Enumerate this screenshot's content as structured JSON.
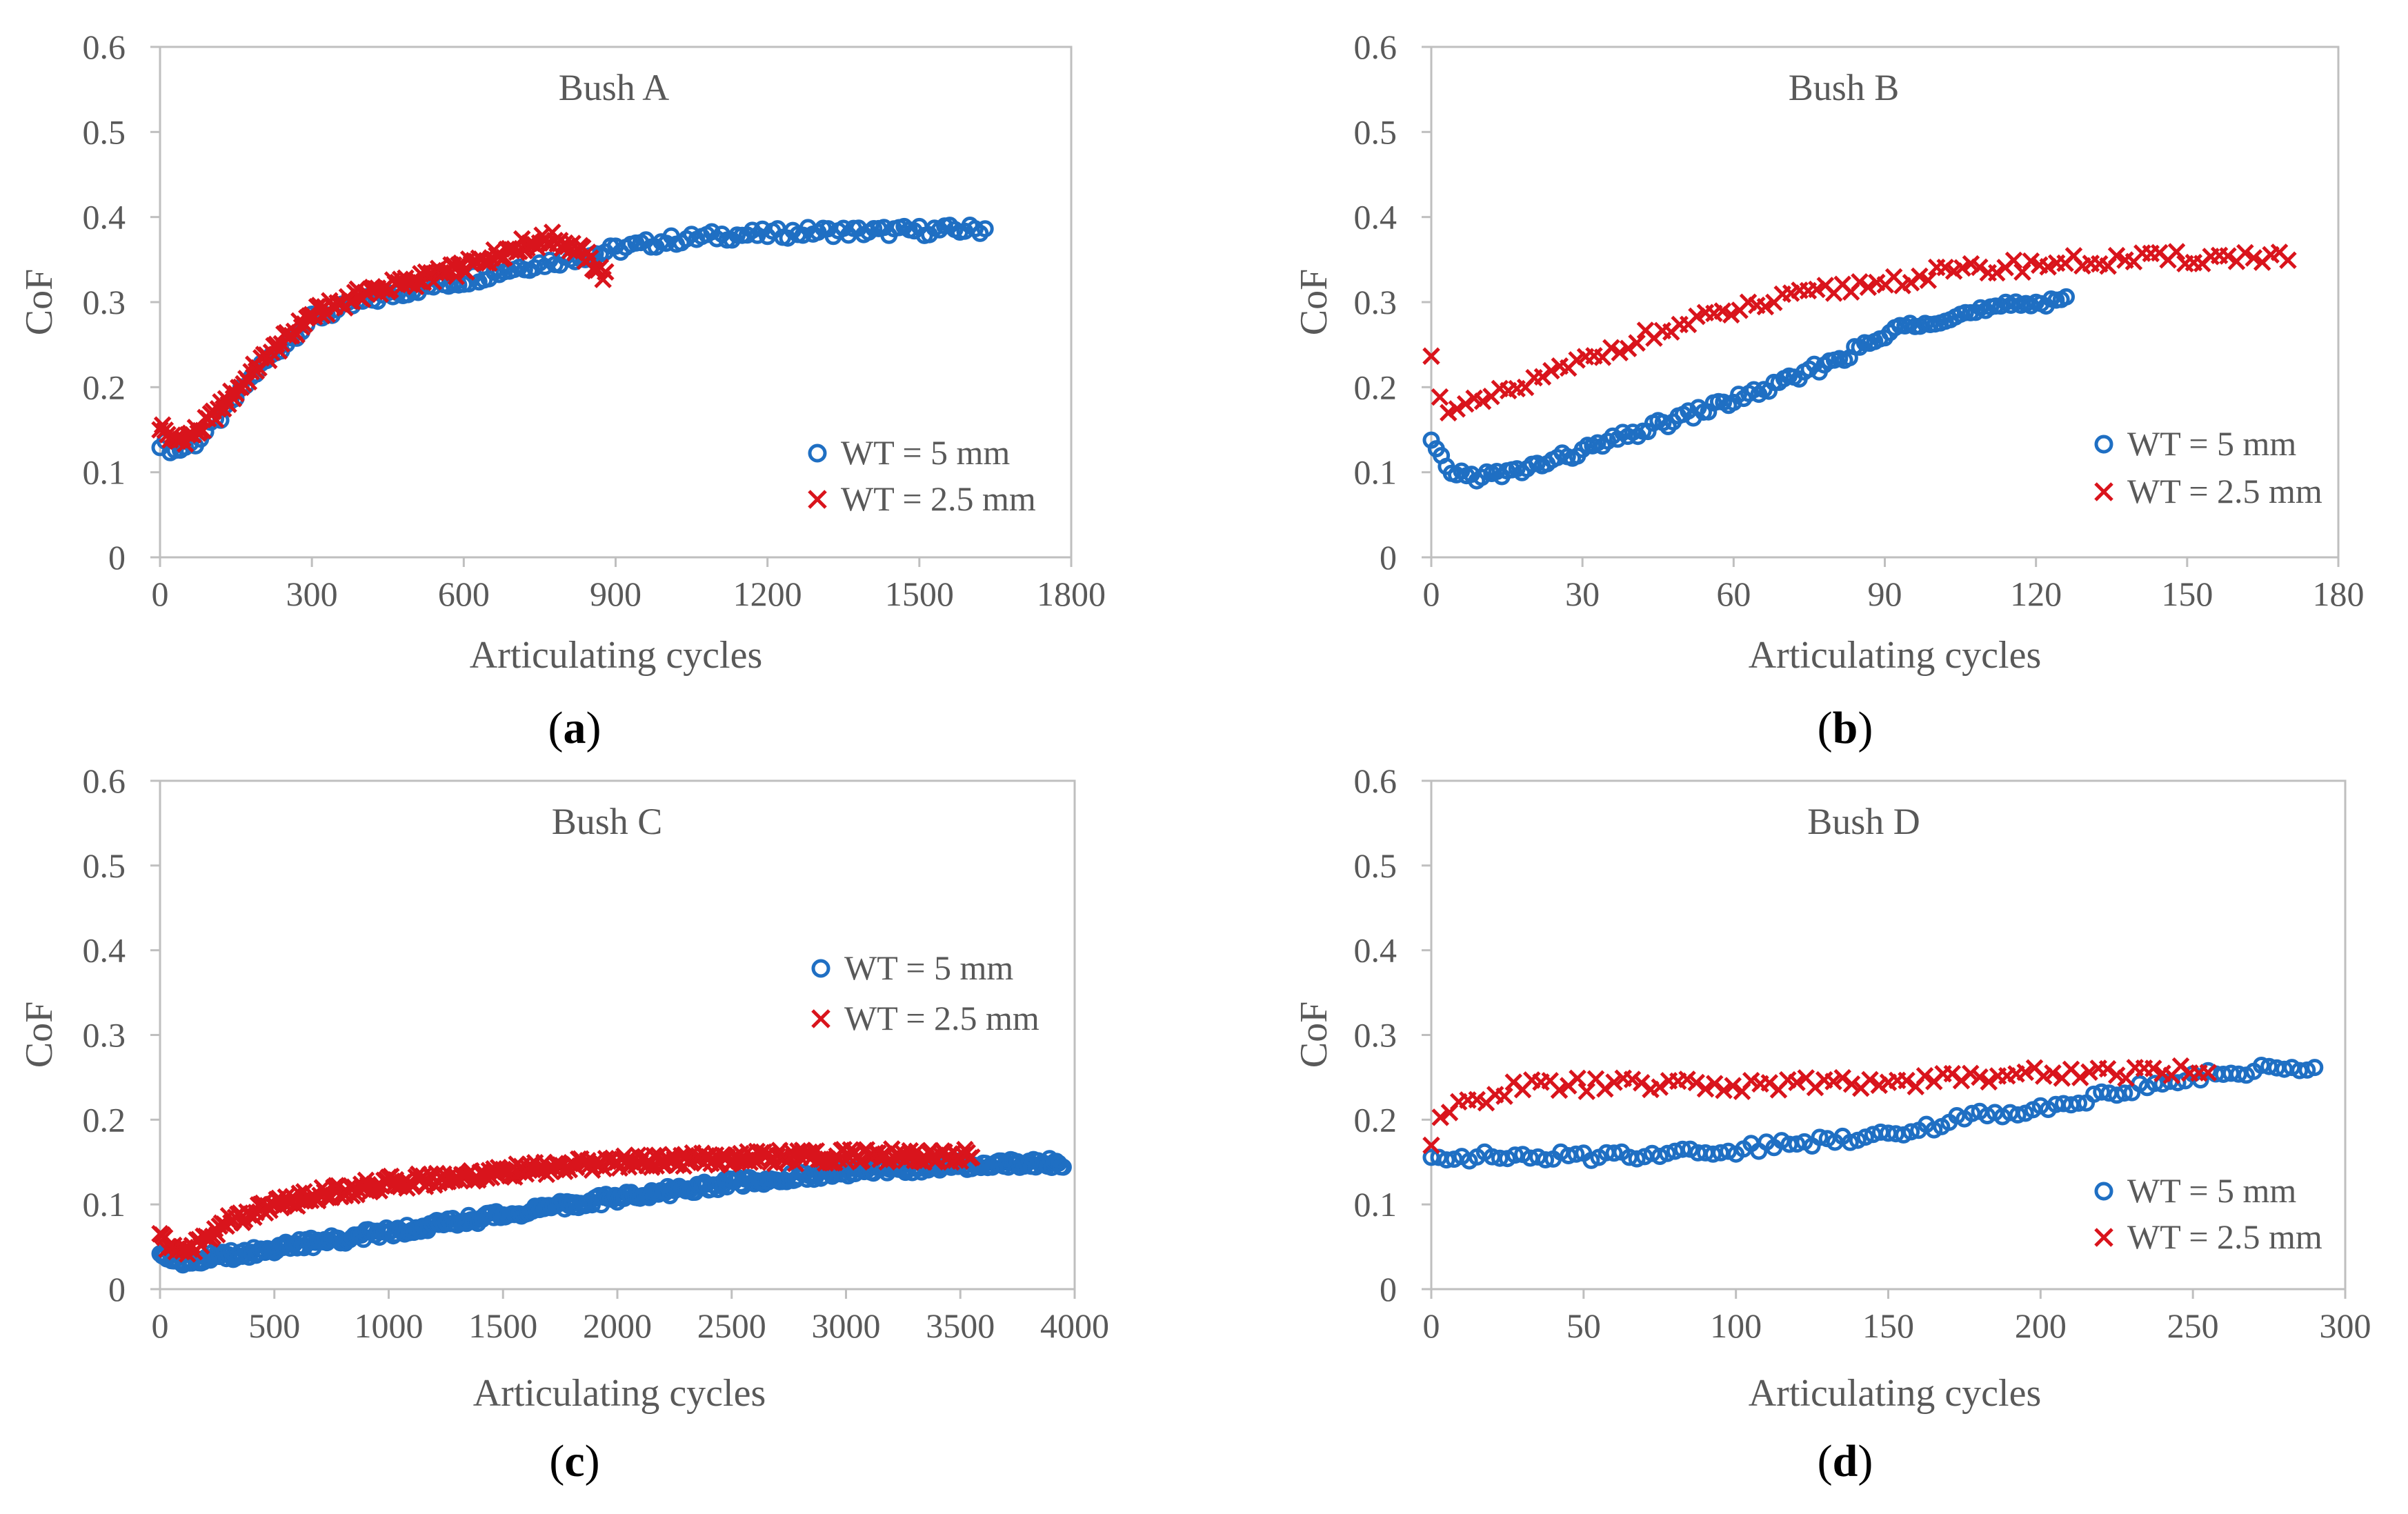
{
  "colors": {
    "series_blue": "#1f6fc3",
    "series_red": "#d9141c",
    "axis": "#bfbfbf",
    "text": "#595959"
  },
  "chart_data": [
    {
      "type": "scatter",
      "title": "Bush A",
      "caption_letter": "a",
      "caption_open": "(",
      "caption_close": ")",
      "xlabel": "Articulating cycles",
      "ylabel": "CoF",
      "xlim": [
        0,
        1800
      ],
      "ylim": [
        0,
        0.6
      ],
      "xticks": [
        0,
        300,
        600,
        900,
        1200,
        1500,
        1800
      ],
      "yticks": [
        0,
        0.1,
        0.2,
        0.3,
        0.4,
        0.5,
        0.6
      ],
      "xtick_labels": [
        "0",
        "300",
        "600",
        "900",
        "1200",
        "1500",
        "1800"
      ],
      "ytick_labels": [
        "0",
        "0.1",
        "0.2",
        "0.3",
        "0.4",
        "0.5",
        "0.6"
      ],
      "legend_position": "bottom-right",
      "series": [
        {
          "name": "WT = 5 mm",
          "marker": "circle",
          "color": "#1f6fc3",
          "x_max": 1630,
          "step": 10,
          "points": [
            [
              0,
              0.135
            ],
            [
              30,
              0.125
            ],
            [
              70,
              0.135
            ],
            [
              120,
              0.165
            ],
            [
              200,
              0.225
            ],
            [
              300,
              0.28
            ],
            [
              400,
              0.3
            ],
            [
              500,
              0.315
            ],
            [
              600,
              0.325
            ],
            [
              700,
              0.34
            ],
            [
              800,
              0.35
            ],
            [
              900,
              0.362
            ],
            [
              1000,
              0.372
            ],
            [
              1100,
              0.378
            ],
            [
              1200,
              0.38
            ],
            [
              1300,
              0.383
            ],
            [
              1400,
              0.383
            ],
            [
              1500,
              0.384
            ],
            [
              1630,
              0.386
            ]
          ]
        },
        {
          "name": "WT = 2.5 mm",
          "marker": "x",
          "color": "#d9141c",
          "x_max": 880,
          "step": 5,
          "points": [
            [
              0,
              0.155
            ],
            [
              30,
              0.135
            ],
            [
              80,
              0.15
            ],
            [
              150,
              0.195
            ],
            [
              200,
              0.23
            ],
            [
              300,
              0.285
            ],
            [
              400,
              0.31
            ],
            [
              500,
              0.325
            ],
            [
              600,
              0.34
            ],
            [
              700,
              0.365
            ],
            [
              780,
              0.375
            ],
            [
              830,
              0.36
            ],
            [
              880,
              0.33
            ]
          ]
        }
      ]
    },
    {
      "type": "scatter",
      "title": "Bush B",
      "caption_letter": "b",
      "caption_open": "(",
      "caption_close": ")",
      "xlabel": "Articulating cycles",
      "ylabel": "CoF",
      "xlim": [
        0,
        180
      ],
      "ylim": [
        0,
        0.6
      ],
      "xticks": [
        0,
        30,
        60,
        90,
        120,
        150,
        180
      ],
      "yticks": [
        0,
        0.1,
        0.2,
        0.3,
        0.4,
        0.5,
        0.6
      ],
      "xtick_labels": [
        "0",
        "30",
        "60",
        "90",
        "120",
        "150",
        "180"
      ],
      "ytick_labels": [
        "0",
        "0.1",
        "0.2",
        "0.3",
        "0.4",
        "0.5",
        "0.6"
      ],
      "legend_position": "bottom-right",
      "series": [
        {
          "name": "WT = 5 mm",
          "marker": "circle",
          "color": "#1f6fc3",
          "x_max": 126,
          "step": 1,
          "points": [
            [
              0,
              0.135
            ],
            [
              3,
              0.103
            ],
            [
              8,
              0.095
            ],
            [
              15,
              0.098
            ],
            [
              25,
              0.115
            ],
            [
              40,
              0.145
            ],
            [
              55,
              0.175
            ],
            [
              70,
              0.205
            ],
            [
              85,
              0.245
            ],
            [
              95,
              0.275
            ],
            [
              105,
              0.285
            ],
            [
              115,
              0.295
            ],
            [
              126,
              0.305
            ]
          ]
        },
        {
          "name": "WT = 2.5 mm",
          "marker": "x",
          "color": "#d9141c",
          "x_max": 171,
          "step": 1.7,
          "points": [
            [
              0,
              0.232
            ],
            [
              2,
              0.19
            ],
            [
              4,
              0.168
            ],
            [
              8,
              0.178
            ],
            [
              20,
              0.205
            ],
            [
              40,
              0.255
            ],
            [
              60,
              0.29
            ],
            [
              80,
              0.315
            ],
            [
              100,
              0.333
            ],
            [
              120,
              0.345
            ],
            [
              140,
              0.35
            ],
            [
              160,
              0.353
            ],
            [
              171,
              0.355
            ]
          ]
        }
      ]
    },
    {
      "type": "scatter",
      "title": "Bush C",
      "caption_letter": "c",
      "caption_open": "(",
      "caption_close": ")",
      "xlabel": "Articulating cycles",
      "ylabel": "CoF",
      "xlim": [
        0,
        4000
      ],
      "ylim": [
        0,
        0.6
      ],
      "xticks": [
        0,
        500,
        1000,
        1500,
        2000,
        2500,
        3000,
        3500,
        4000
      ],
      "yticks": [
        0,
        0.1,
        0.2,
        0.3,
        0.4,
        0.5,
        0.6
      ],
      "xtick_labels": [
        "0",
        "500",
        "1000",
        "1500",
        "2000",
        "2500",
        "3000",
        "3500",
        "4000"
      ],
      "ytick_labels": [
        "0",
        "0.1",
        "0.2",
        "0.3",
        "0.4",
        "0.5",
        "0.6"
      ],
      "legend_position": "center-right",
      "series": [
        {
          "name": "WT = 5 mm",
          "marker": "circle",
          "color": "#1f6fc3",
          "x_max": 3950,
          "step": 10,
          "points": [
            [
              0,
              0.045
            ],
            [
              100,
              0.033
            ],
            [
              300,
              0.04
            ],
            [
              500,
              0.048
            ],
            [
              1000,
              0.068
            ],
            [
              1500,
              0.088
            ],
            [
              2000,
              0.108
            ],
            [
              2500,
              0.125
            ],
            [
              3000,
              0.138
            ],
            [
              3500,
              0.147
            ],
            [
              3950,
              0.15
            ]
          ]
        },
        {
          "name": "WT = 2.5 mm",
          "marker": "x",
          "color": "#d9141c",
          "x_max": 3550,
          "step": 10,
          "points": [
            [
              0,
              0.062
            ],
            [
              60,
              0.045
            ],
            [
              150,
              0.05
            ],
            [
              300,
              0.08
            ],
            [
              500,
              0.1
            ],
            [
              700,
              0.112
            ],
            [
              1000,
              0.125
            ],
            [
              1500,
              0.138
            ],
            [
              2000,
              0.15
            ],
            [
              2500,
              0.155
            ],
            [
              3000,
              0.157
            ],
            [
              3550,
              0.158
            ]
          ]
        }
      ]
    },
    {
      "type": "scatter",
      "title": "Bush D",
      "caption_letter": "d",
      "caption_open": "(",
      "caption_close": ")",
      "xlabel": "Articulating cycles",
      "ylabel": "CoF",
      "xlim": [
        0,
        300
      ],
      "ylim": [
        0,
        0.6
      ],
      "xticks": [
        0,
        50,
        100,
        150,
        200,
        250,
        300
      ],
      "yticks": [
        0,
        0.1,
        0.2,
        0.3,
        0.4,
        0.5,
        0.6
      ],
      "xtick_labels": [
        "0",
        "50",
        "100",
        "150",
        "200",
        "250",
        "300"
      ],
      "ytick_labels": [
        "0",
        "0.1",
        "0.2",
        "0.3",
        "0.4",
        "0.5",
        "0.6"
      ],
      "legend_position": "bottom-right",
      "series": [
        {
          "name": "WT = 5 mm",
          "marker": "circle",
          "color": "#1f6fc3",
          "x_max": 290,
          "step": 2.5,
          "points": [
            [
              0,
              0.158
            ],
            [
              30,
              0.155
            ],
            [
              60,
              0.158
            ],
            [
              100,
              0.165
            ],
            [
              140,
              0.18
            ],
            [
              160,
              0.19
            ],
            [
              180,
              0.205
            ],
            [
              200,
              0.215
            ],
            [
              220,
              0.228
            ],
            [
              240,
              0.245
            ],
            [
              260,
              0.255
            ],
            [
              290,
              0.265
            ]
          ]
        },
        {
          "name": "WT = 2.5 mm",
          "marker": "x",
          "color": "#d9141c",
          "x_max": 255,
          "step": 3,
          "points": [
            [
              0,
              0.172
            ],
            [
              3,
              0.195
            ],
            [
              10,
              0.22
            ],
            [
              30,
              0.24
            ],
            [
              60,
              0.242
            ],
            [
              100,
              0.24
            ],
            [
              150,
              0.245
            ],
            [
              200,
              0.255
            ],
            [
              255,
              0.258
            ]
          ]
        }
      ]
    }
  ]
}
